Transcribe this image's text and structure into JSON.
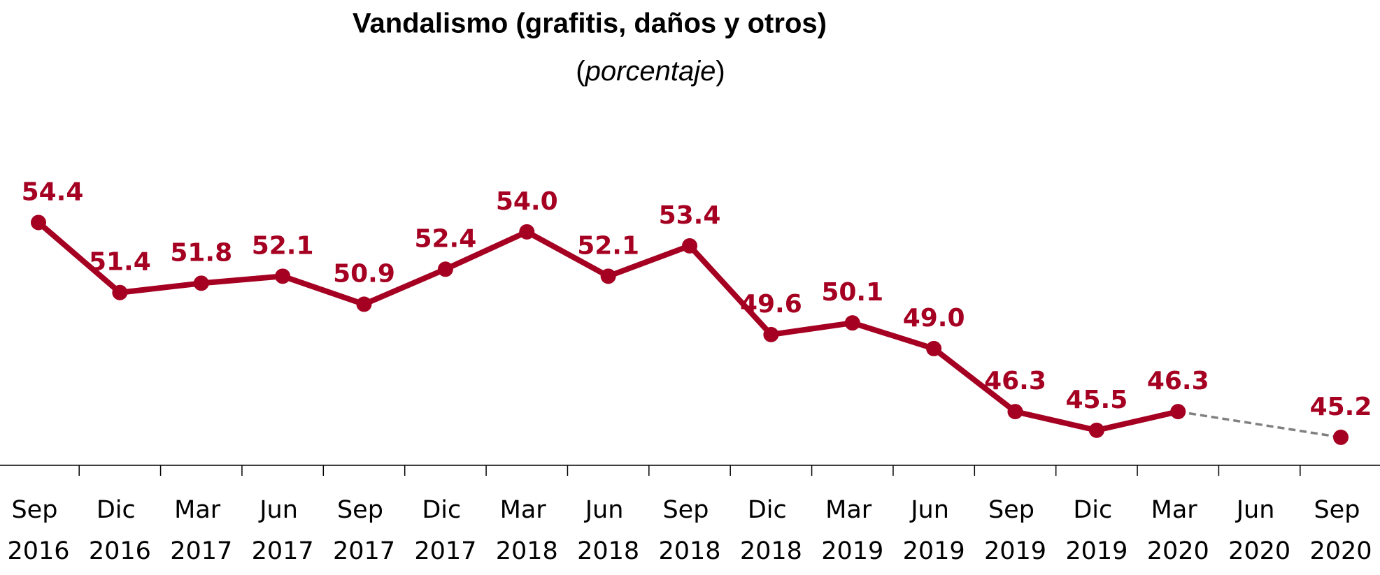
{
  "chart_data": {
    "type": "line",
    "title": "Vandalismo (grafitis, daños y otros)",
    "subtitle": "(porcentaje)",
    "categories": [
      "Sep 2016",
      "Dic 2016",
      "Mar 2017",
      "Jun 2017",
      "Sep 2017",
      "Dic 2017",
      "Mar 2018",
      "Jun 2018",
      "Sep 2018",
      "Dic 2018",
      "Mar 2019",
      "Jun 2019",
      "Sep 2019",
      "Dic 2019",
      "Mar 2020",
      "Jun 2020",
      "Sep 2020"
    ],
    "series": [
      {
        "name": "Vandalismo",
        "color": "#a50021",
        "values": [
          54.4,
          51.4,
          51.8,
          52.1,
          50.9,
          52.4,
          54.0,
          52.1,
          53.4,
          49.6,
          50.1,
          49.0,
          46.3,
          45.5,
          46.3,
          null,
          45.2
        ],
        "value_labels": [
          "54.4",
          "51.4",
          "51.8",
          "52.1",
          "50.9",
          "52.4",
          "54.0",
          "52.1",
          "53.4",
          "49.6",
          "50.1",
          "49.0",
          "46.3",
          "45.5",
          "46.3",
          null,
          "45.2"
        ]
      }
    ],
    "ylim": [
      44,
      56
    ],
    "gap_color": "#808080"
  }
}
